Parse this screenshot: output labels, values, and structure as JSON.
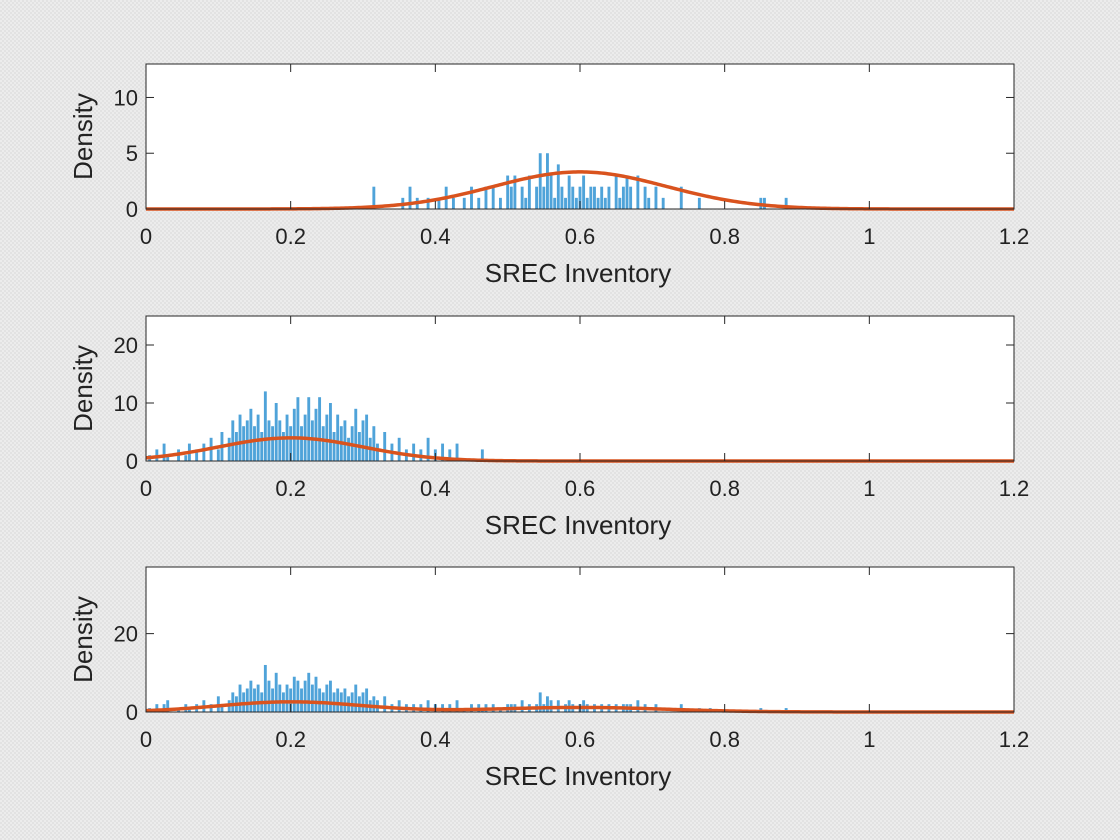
{
  "colors": {
    "bar": "#4fa3d9",
    "curve": "#d9531e",
    "axis": "#262626",
    "plot_bg": "#ffffff"
  },
  "chart_data": [
    {
      "type": "bar",
      "overlay": "fitted density curve",
      "xlabel": "SREC Inventory",
      "ylabel": "Density",
      "xlim": [
        0,
        1.2
      ],
      "ylim": [
        0,
        13
      ],
      "xticks": [
        0,
        0.2,
        0.4,
        0.6,
        0.8,
        1,
        1.2
      ],
      "yticks": [
        0,
        5,
        10
      ],
      "bin_width": 0.004,
      "bars": [
        [
          0.315,
          2
        ],
        [
          0.355,
          1
        ],
        [
          0.365,
          2
        ],
        [
          0.375,
          1
        ],
        [
          0.39,
          1
        ],
        [
          0.405,
          1
        ],
        [
          0.415,
          2
        ],
        [
          0.425,
          1
        ],
        [
          0.44,
          1
        ],
        [
          0.45,
          2
        ],
        [
          0.46,
          1
        ],
        [
          0.47,
          2
        ],
        [
          0.48,
          2
        ],
        [
          0.49,
          1
        ],
        [
          0.5,
          3
        ],
        [
          0.505,
          2
        ],
        [
          0.51,
          3
        ],
        [
          0.52,
          2
        ],
        [
          0.525,
          1
        ],
        [
          0.53,
          3
        ],
        [
          0.54,
          2
        ],
        [
          0.545,
          5
        ],
        [
          0.55,
          2
        ],
        [
          0.555,
          5
        ],
        [
          0.56,
          3
        ],
        [
          0.565,
          1
        ],
        [
          0.57,
          4
        ],
        [
          0.575,
          2
        ],
        [
          0.58,
          1
        ],
        [
          0.585,
          3
        ],
        [
          0.59,
          2
        ],
        [
          0.595,
          1
        ],
        [
          0.6,
          2
        ],
        [
          0.605,
          3
        ],
        [
          0.61,
          1
        ],
        [
          0.615,
          2
        ],
        [
          0.62,
          2
        ],
        [
          0.625,
          1
        ],
        [
          0.63,
          2
        ],
        [
          0.635,
          1
        ],
        [
          0.64,
          2
        ],
        [
          0.65,
          3
        ],
        [
          0.655,
          1
        ],
        [
          0.66,
          2
        ],
        [
          0.665,
          3
        ],
        [
          0.67,
          2
        ],
        [
          0.68,
          3
        ],
        [
          0.69,
          2
        ],
        [
          0.695,
          1
        ],
        [
          0.705,
          2
        ],
        [
          0.715,
          1
        ],
        [
          0.74,
          2
        ],
        [
          0.765,
          1
        ],
        [
          0.85,
          1
        ],
        [
          0.855,
          1
        ],
        [
          0.885,
          1
        ]
      ],
      "curve": {
        "components": [
          {
            "weight": 1.0,
            "mean": 0.6,
            "sd": 0.12
          }
        ]
      }
    },
    {
      "type": "bar",
      "overlay": "fitted density curve",
      "xlabel": "SREC Inventory",
      "ylabel": "Density",
      "xlim": [
        0,
        1.2
      ],
      "ylim": [
        0,
        25
      ],
      "xticks": [
        0,
        0.2,
        0.4,
        0.6,
        0.8,
        1,
        1.2
      ],
      "yticks": [
        0,
        10,
        20
      ],
      "bin_width": 0.004,
      "bars": [
        [
          0.005,
          1
        ],
        [
          0.015,
          2
        ],
        [
          0.025,
          3
        ],
        [
          0.03,
          1
        ],
        [
          0.045,
          2
        ],
        [
          0.055,
          1
        ],
        [
          0.06,
          3
        ],
        [
          0.07,
          2
        ],
        [
          0.08,
          3
        ],
        [
          0.09,
          4
        ],
        [
          0.1,
          2
        ],
        [
          0.105,
          5
        ],
        [
          0.115,
          4
        ],
        [
          0.12,
          7
        ],
        [
          0.125,
          5
        ],
        [
          0.13,
          8
        ],
        [
          0.135,
          6
        ],
        [
          0.14,
          7
        ],
        [
          0.145,
          9
        ],
        [
          0.15,
          6
        ],
        [
          0.155,
          8
        ],
        [
          0.16,
          5
        ],
        [
          0.165,
          12
        ],
        [
          0.17,
          7
        ],
        [
          0.175,
          6
        ],
        [
          0.18,
          10
        ],
        [
          0.185,
          7
        ],
        [
          0.19,
          5
        ],
        [
          0.195,
          8
        ],
        [
          0.2,
          6
        ],
        [
          0.205,
          9
        ],
        [
          0.21,
          11
        ],
        [
          0.215,
          6
        ],
        [
          0.22,
          8
        ],
        [
          0.225,
          11
        ],
        [
          0.23,
          7
        ],
        [
          0.235,
          9
        ],
        [
          0.24,
          11
        ],
        [
          0.245,
          6
        ],
        [
          0.25,
          8
        ],
        [
          0.255,
          10
        ],
        [
          0.26,
          5
        ],
        [
          0.265,
          8
        ],
        [
          0.27,
          6
        ],
        [
          0.275,
          7
        ],
        [
          0.28,
          4
        ],
        [
          0.285,
          6
        ],
        [
          0.29,
          9
        ],
        [
          0.295,
          5
        ],
        [
          0.3,
          7
        ],
        [
          0.305,
          8
        ],
        [
          0.31,
          4
        ],
        [
          0.315,
          6
        ],
        [
          0.32,
          3
        ],
        [
          0.33,
          5
        ],
        [
          0.34,
          3
        ],
        [
          0.35,
          4
        ],
        [
          0.36,
          2
        ],
        [
          0.37,
          3
        ],
        [
          0.38,
          2
        ],
        [
          0.39,
          4
        ],
        [
          0.4,
          2
        ],
        [
          0.41,
          3
        ],
        [
          0.42,
          2
        ],
        [
          0.43,
          3
        ],
        [
          0.465,
          2
        ]
      ],
      "curve": {
        "components": [
          {
            "weight": 1.0,
            "mean": 0.2,
            "sd": 0.1
          }
        ]
      }
    },
    {
      "type": "bar",
      "overlay": "fitted density curve",
      "xlabel": "SREC Inventory",
      "ylabel": "Density",
      "xlim": [
        0,
        1.2
      ],
      "ylim": [
        0,
        37
      ],
      "xticks": [
        0,
        0.2,
        0.4,
        0.6,
        0.8,
        1,
        1.2
      ],
      "yticks": [
        0,
        20
      ],
      "bin_width": 0.004,
      "bars": [
        [
          0.005,
          1
        ],
        [
          0.015,
          2
        ],
        [
          0.025,
          2
        ],
        [
          0.03,
          3
        ],
        [
          0.045,
          1
        ],
        [
          0.055,
          2
        ],
        [
          0.06,
          1
        ],
        [
          0.07,
          2
        ],
        [
          0.08,
          3
        ],
        [
          0.09,
          2
        ],
        [
          0.1,
          4
        ],
        [
          0.105,
          2
        ],
        [
          0.115,
          3
        ],
        [
          0.12,
          5
        ],
        [
          0.125,
          4
        ],
        [
          0.13,
          7
        ],
        [
          0.135,
          5
        ],
        [
          0.14,
          6
        ],
        [
          0.145,
          8
        ],
        [
          0.15,
          6
        ],
        [
          0.155,
          7
        ],
        [
          0.16,
          5
        ],
        [
          0.165,
          12
        ],
        [
          0.17,
          8
        ],
        [
          0.175,
          6
        ],
        [
          0.18,
          10
        ],
        [
          0.185,
          7
        ],
        [
          0.19,
          5
        ],
        [
          0.195,
          7
        ],
        [
          0.2,
          6
        ],
        [
          0.205,
          9
        ],
        [
          0.21,
          8
        ],
        [
          0.215,
          6
        ],
        [
          0.22,
          8
        ],
        [
          0.225,
          10
        ],
        [
          0.23,
          7
        ],
        [
          0.235,
          9
        ],
        [
          0.24,
          6
        ],
        [
          0.245,
          5
        ],
        [
          0.25,
          7
        ],
        [
          0.255,
          8
        ],
        [
          0.26,
          5
        ],
        [
          0.265,
          6
        ],
        [
          0.27,
          5
        ],
        [
          0.275,
          6
        ],
        [
          0.28,
          4
        ],
        [
          0.285,
          5
        ],
        [
          0.29,
          7
        ],
        [
          0.295,
          4
        ],
        [
          0.3,
          5
        ],
        [
          0.305,
          6
        ],
        [
          0.31,
          3
        ],
        [
          0.315,
          4
        ],
        [
          0.32,
          3
        ],
        [
          0.33,
          4
        ],
        [
          0.34,
          2
        ],
        [
          0.35,
          3
        ],
        [
          0.36,
          2
        ],
        [
          0.37,
          2
        ],
        [
          0.38,
          2
        ],
        [
          0.39,
          3
        ],
        [
          0.4,
          2
        ],
        [
          0.41,
          2
        ],
        [
          0.42,
          2
        ],
        [
          0.43,
          3
        ],
        [
          0.44,
          1
        ],
        [
          0.45,
          2
        ],
        [
          0.46,
          2
        ],
        [
          0.465,
          1
        ],
        [
          0.47,
          2
        ],
        [
          0.48,
          2
        ],
        [
          0.49,
          1
        ],
        [
          0.5,
          2
        ],
        [
          0.505,
          2
        ],
        [
          0.51,
          2
        ],
        [
          0.52,
          3
        ],
        [
          0.53,
          2
        ],
        [
          0.54,
          2
        ],
        [
          0.545,
          5
        ],
        [
          0.55,
          2
        ],
        [
          0.555,
          4
        ],
        [
          0.56,
          3
        ],
        [
          0.57,
          3
        ],
        [
          0.58,
          2
        ],
        [
          0.585,
          3
        ],
        [
          0.59,
          2
        ],
        [
          0.6,
          2
        ],
        [
          0.605,
          3
        ],
        [
          0.61,
          2
        ],
        [
          0.62,
          2
        ],
        [
          0.63,
          2
        ],
        [
          0.64,
          2
        ],
        [
          0.65,
          2
        ],
        [
          0.66,
          2
        ],
        [
          0.665,
          2
        ],
        [
          0.67,
          2
        ],
        [
          0.68,
          3
        ],
        [
          0.69,
          2
        ],
        [
          0.705,
          2
        ],
        [
          0.74,
          2
        ],
        [
          0.765,
          1
        ],
        [
          0.78,
          1
        ],
        [
          0.85,
          1
        ],
        [
          0.885,
          1
        ]
      ],
      "curve": {
        "components": [
          {
            "weight": 0.65,
            "mean": 0.2,
            "sd": 0.1
          },
          {
            "weight": 0.35,
            "mean": 0.6,
            "sd": 0.12
          }
        ]
      }
    }
  ]
}
